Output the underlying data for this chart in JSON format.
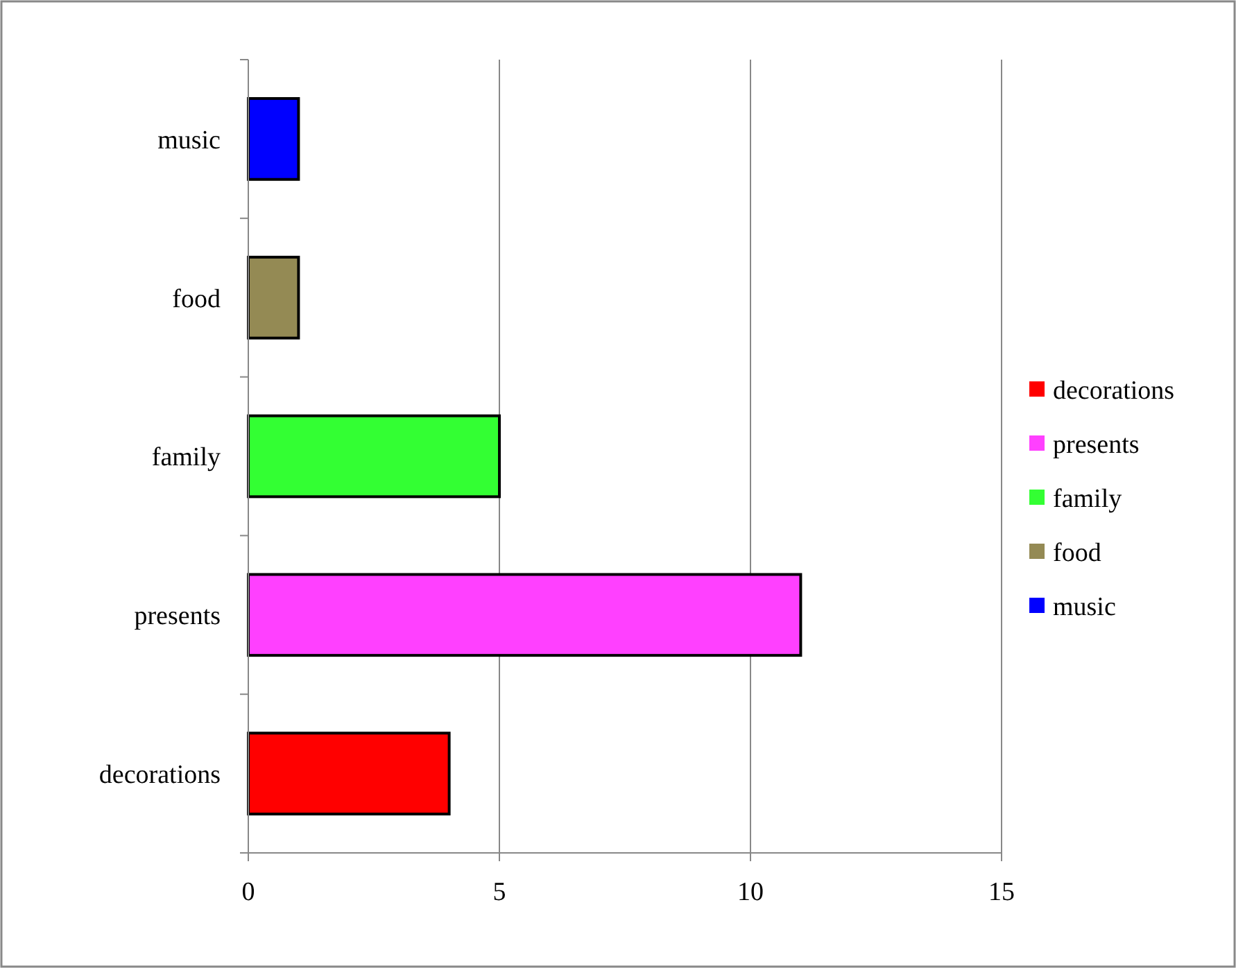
{
  "chart_data": {
    "type": "bar",
    "orientation": "horizontal",
    "stacked": true,
    "categories": [
      "music",
      "food",
      "family",
      "presents",
      "decorations"
    ],
    "series": [
      {
        "name": "decorations",
        "color": "#ff0000",
        "values": [
          null,
          null,
          null,
          null,
          4
        ]
      },
      {
        "name": "presents",
        "color": "#ff40ff",
        "values": [
          null,
          null,
          null,
          11,
          null
        ]
      },
      {
        "name": "family",
        "color": "#33ff33",
        "values": [
          null,
          null,
          5,
          null,
          null
        ]
      },
      {
        "name": "food",
        "color": "#948a54",
        "values": [
          null,
          1,
          null,
          null,
          null
        ]
      },
      {
        "name": "music",
        "color": "#0000ff",
        "values": [
          1,
          null,
          null,
          null,
          null
        ]
      }
    ],
    "xlim": [
      0,
      15
    ],
    "xticks": [
      0,
      5,
      10,
      15
    ],
    "grid": "x",
    "legend": "right"
  }
}
